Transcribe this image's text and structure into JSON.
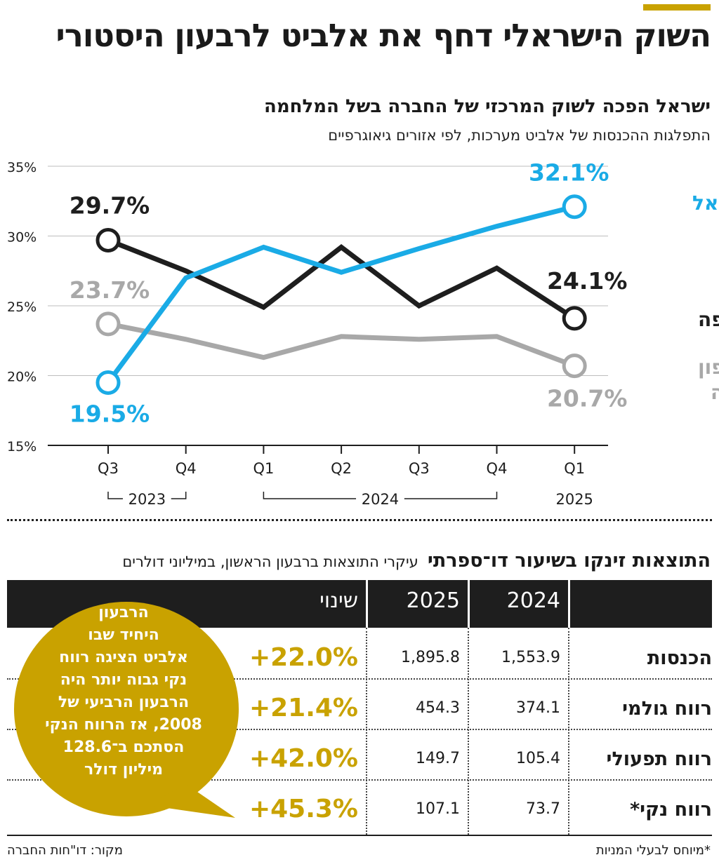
{
  "header": {
    "title": "השוק הישראלי דחף את אלביט לרבעון היסטורי"
  },
  "chart_data": {
    "type": "line",
    "title": "ישראל הפכה לשוק המרכזי של החברה בשל המלחמה",
    "subtitle": "התפלגות ההכנסות של אלביט מערכות, לפי אזורים גיאוגרפיים",
    "categories": [
      "Q3",
      "Q4",
      "Q1",
      "Q2",
      "Q3",
      "Q4",
      "Q1"
    ],
    "year_groups": [
      {
        "label": "2023",
        "from": 0,
        "to": 1
      },
      {
        "label": "2024",
        "from": 2,
        "to": 5
      },
      {
        "label": "2025",
        "from": 6,
        "to": 6
      }
    ],
    "ylim": [
      15,
      35
    ],
    "yticks": [
      15,
      20,
      25,
      30,
      35
    ],
    "ytick_labels": [
      "15%",
      "20%",
      "25%",
      "30%",
      "35%"
    ],
    "grid": true,
    "series": [
      {
        "name": "ישראל",
        "color": "#1aabe6",
        "values": [
          19.5,
          27.0,
          29.2,
          27.4,
          29.1,
          30.7,
          32.1
        ],
        "start_label": "19.5%",
        "end_label": "32.1%"
      },
      {
        "name": "אירופה",
        "color": "#1e1e1e",
        "values": [
          29.7,
          27.5,
          24.9,
          29.2,
          25.0,
          27.7,
          24.1
        ],
        "start_label": "29.7%",
        "end_label": "24.1%"
      },
      {
        "name": "צפון אמריקה",
        "name_lines": [
          "צפון",
          "אמריקה"
        ],
        "color": "#a8a8a8",
        "values": [
          23.7,
          22.6,
          21.3,
          22.8,
          22.6,
          22.8,
          20.7
        ],
        "start_label": "23.7%",
        "end_label": "20.7%"
      }
    ]
  },
  "table": {
    "title": "התוצאות זינקו בשיעור דו־ספרתי",
    "subtitle": "עיקרי התוצאות ברבעון הראשון, במיליוני דולרים",
    "columns": [
      "2024",
      "2025",
      "שינוי"
    ],
    "rows": [
      {
        "label": "הכנסות",
        "v2024": "1,553.9",
        "v2025": "1,895.8",
        "change": "+22.0%"
      },
      {
        "label": "רווח גולמי",
        "v2024": "374.1",
        "v2025": "454.3",
        "change": "+21.4%"
      },
      {
        "label": "רווח תפעולי",
        "v2024": "105.4",
        "v2025": "149.7",
        "change": "+42.0%"
      },
      {
        "label": "רווח נקי*",
        "v2024": "73.7",
        "v2025": "107.1",
        "change": "+45.3%"
      }
    ],
    "change_color": "#c9a200"
  },
  "callout": {
    "lines": [
      "הרבעון",
      "היחיד שבו",
      "אלביט הציגה רווח",
      "נקי גבוה יותר היה",
      "הרבעון הרביעי של",
      "2008, אז הרווח הנקי",
      "הסתכם ב־128.6",
      "מיליון דולר"
    ],
    "color": "#c9a200"
  },
  "footer": {
    "footnote": "*מיוחס לבעלי המניות",
    "source": "מקור: דו\"חות החברה"
  }
}
